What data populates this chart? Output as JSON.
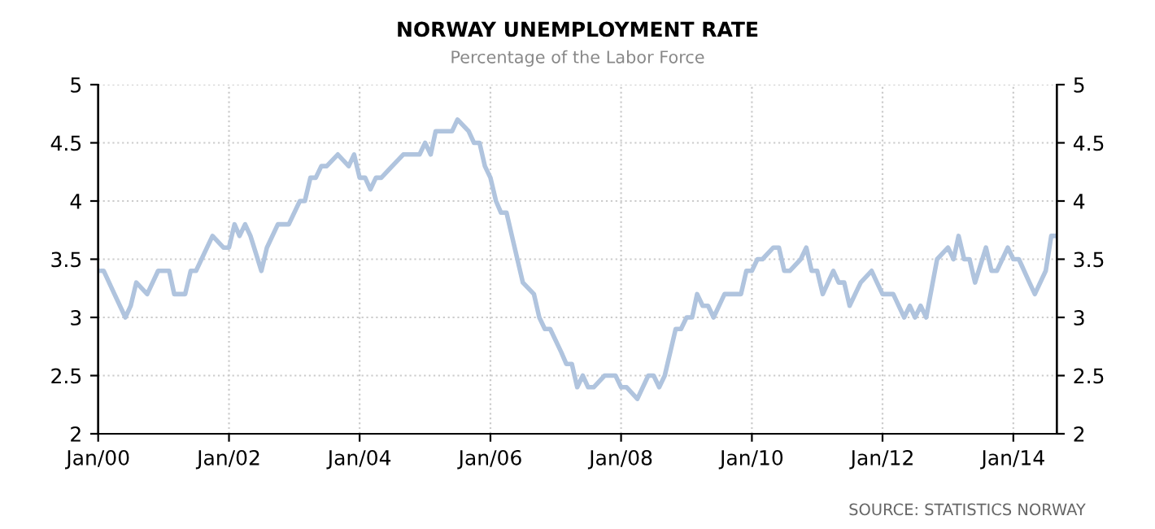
{
  "chart_data": {
    "type": "line",
    "title": "NORWAY UNEMPLOYMENT RATE",
    "subtitle": "Percentage of the Labor Force",
    "x": [
      "2000-01",
      "2000-02",
      "2000-04",
      "2000-06",
      "2000-07",
      "2000-08",
      "2000-10",
      "2000-12",
      "2001-02",
      "2001-03",
      "2001-05",
      "2001-06",
      "2001-07",
      "2001-10",
      "2001-12",
      "2002-01",
      "2002-02",
      "2002-03",
      "2002-04",
      "2002-05",
      "2002-07",
      "2002-08",
      "2002-10",
      "2002-12",
      "2003-02",
      "2003-03",
      "2003-04",
      "2003-05",
      "2003-06",
      "2003-07",
      "2003-09",
      "2003-11",
      "2003-12",
      "2004-01",
      "2004-02",
      "2004-03",
      "2004-04",
      "2004-05",
      "2004-07",
      "2004-09",
      "2004-12",
      "2005-01",
      "2005-02",
      "2005-03",
      "2005-06",
      "2005-07",
      "2005-09",
      "2005-10",
      "2005-11",
      "2005-12",
      "2006-01",
      "2006-02",
      "2006-03",
      "2006-04",
      "2006-05",
      "2006-07",
      "2006-09",
      "2006-10",
      "2006-11",
      "2006-12",
      "2007-02",
      "2007-03",
      "2007-04",
      "2007-05",
      "2007-06",
      "2007-07",
      "2007-08",
      "2007-10",
      "2007-12",
      "2008-01",
      "2008-02",
      "2008-04",
      "2008-06",
      "2008-07",
      "2008-08",
      "2008-09",
      "2008-11",
      "2008-12",
      "2009-01",
      "2009-02",
      "2009-03",
      "2009-04",
      "2009-05",
      "2009-06",
      "2009-08",
      "2009-11",
      "2009-12",
      "2010-01",
      "2010-02",
      "2010-03",
      "2010-05",
      "2010-06",
      "2010-07",
      "2010-08",
      "2010-10",
      "2010-11",
      "2010-12",
      "2011-01",
      "2011-02",
      "2011-04",
      "2011-05",
      "2011-06",
      "2011-07",
      "2011-09",
      "2011-11",
      "2011-12",
      "2012-01",
      "2012-03",
      "2012-05",
      "2012-06",
      "2012-07",
      "2012-08",
      "2012-09",
      "2012-11",
      "2013-01",
      "2013-02",
      "2013-03",
      "2013-04",
      "2013-05",
      "2013-06",
      "2013-08",
      "2013-09",
      "2013-10",
      "2013-12",
      "2014-01",
      "2014-02",
      "2014-04",
      "2014-05",
      "2014-07",
      "2014-08",
      "2014-09"
    ],
    "series": [
      {
        "color": "#b0c4de",
        "values": [
          3.4,
          3.4,
          3.2,
          3.0,
          3.1,
          3.3,
          3.2,
          3.4,
          3.4,
          3.2,
          3.2,
          3.4,
          3.4,
          3.7,
          3.6,
          3.6,
          3.8,
          3.7,
          3.8,
          3.7,
          3.4,
          3.6,
          3.8,
          3.8,
          4.0,
          4.0,
          4.2,
          4.2,
          4.3,
          4.3,
          4.4,
          4.3,
          4.4,
          4.2,
          4.2,
          4.1,
          4.2,
          4.2,
          4.3,
          4.4,
          4.4,
          4.5,
          4.4,
          4.6,
          4.6,
          4.7,
          4.6,
          4.5,
          4.5,
          4.3,
          4.2,
          4.0,
          3.9,
          3.9,
          3.7,
          3.3,
          3.2,
          3.0,
          2.9,
          2.9,
          2.7,
          2.6,
          2.6,
          2.4,
          2.5,
          2.4,
          2.4,
          2.5,
          2.5,
          2.4,
          2.4,
          2.3,
          2.5,
          2.5,
          2.4,
          2.5,
          2.9,
          2.9,
          3.0,
          3.0,
          3.2,
          3.1,
          3.1,
          3.0,
          3.2,
          3.2,
          3.4,
          3.4,
          3.5,
          3.5,
          3.6,
          3.6,
          3.4,
          3.4,
          3.5,
          3.6,
          3.4,
          3.4,
          3.2,
          3.4,
          3.3,
          3.3,
          3.1,
          3.3,
          3.4,
          3.3,
          3.2,
          3.2,
          3.0,
          3.1,
          3.0,
          3.1,
          3.0,
          3.5,
          3.6,
          3.5,
          3.7,
          3.5,
          3.5,
          3.3,
          3.6,
          3.4,
          3.4,
          3.6,
          3.5,
          3.5,
          3.3,
          3.2,
          3.4,
          3.7,
          3.7
        ]
      }
    ],
    "xlim": [
      "2000-01",
      "2014-09"
    ],
    "xticks": [
      {
        "value": "2000-01",
        "label": "Jan/00"
      },
      {
        "value": "2002-01",
        "label": "Jan/02"
      },
      {
        "value": "2004-01",
        "label": "Jan/04"
      },
      {
        "value": "2006-01",
        "label": "Jan/06"
      },
      {
        "value": "2008-01",
        "label": "Jan/08"
      },
      {
        "value": "2010-01",
        "label": "Jan/10"
      },
      {
        "value": "2012-01",
        "label": "Jan/12"
      },
      {
        "value": "2014-01",
        "label": "Jan/14"
      }
    ],
    "ylim": [
      2,
      5
    ],
    "yticks": [
      2,
      2.5,
      3,
      3.5,
      4,
      4.5,
      5
    ],
    "y2lim": [
      2,
      5
    ],
    "y2ticks": [
      2,
      2.5,
      3,
      3.5,
      4,
      4.5,
      5
    ],
    "grid": true,
    "marker": "none",
    "line_style": "solid",
    "annotations": [
      "SOURCE: STATISTICS NORWAY"
    ]
  }
}
